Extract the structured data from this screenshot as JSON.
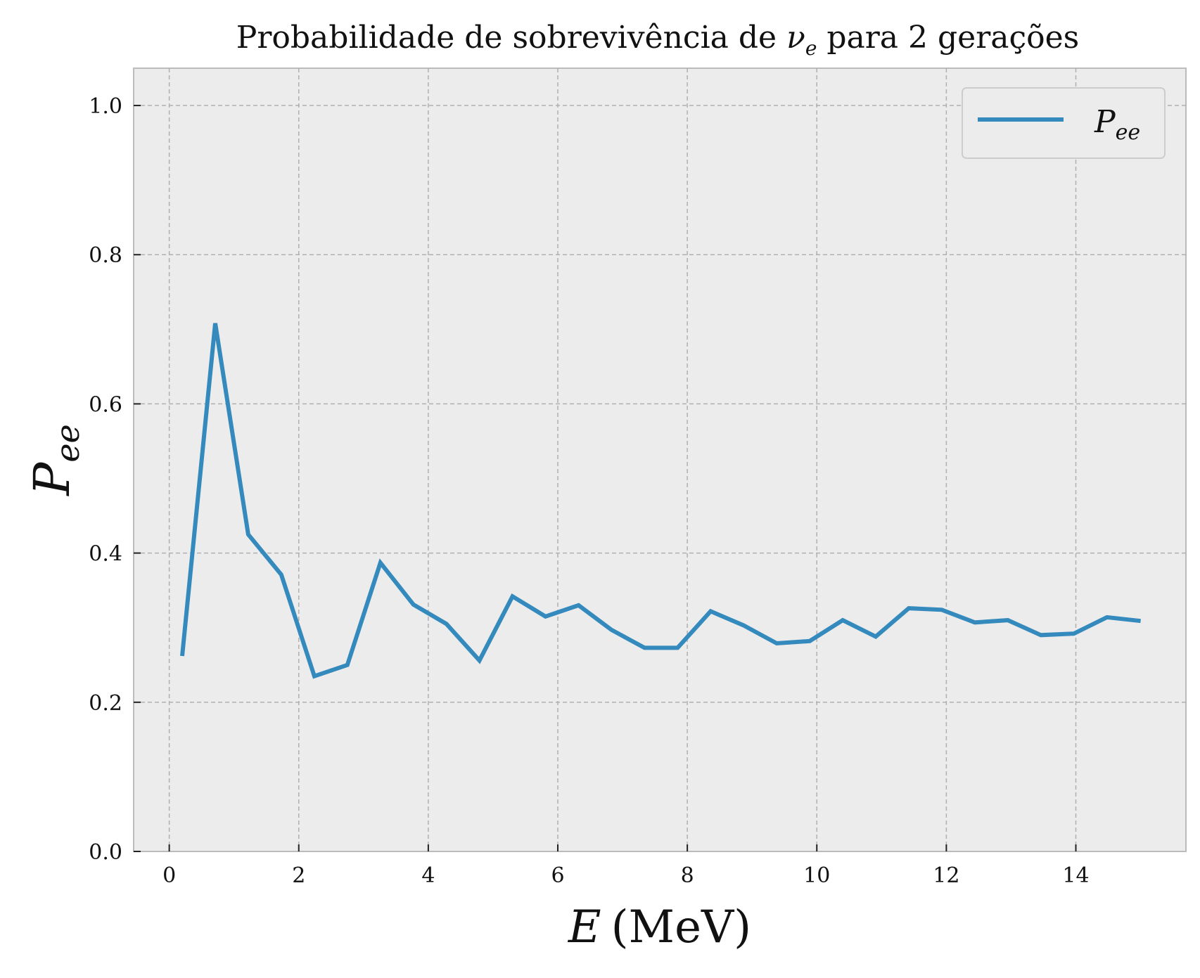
{
  "chart_data": {
    "type": "line",
    "title": {
      "prefix": "Probabilidade de sobrevivência de ",
      "symbol": "ν",
      "symbol_subscript": "e",
      "suffix": " para 2 gerações"
    },
    "xlabel": {
      "symbol": "E",
      "unit": "(MeV)"
    },
    "ylabel": {
      "symbol": "P",
      "subscript": "ee"
    },
    "xlim": [
      -0.55,
      15.7
    ],
    "ylim": [
      0.0,
      1.05
    ],
    "x_ticks": [
      0,
      2,
      4,
      6,
      8,
      10,
      12,
      14
    ],
    "x_tick_labels": [
      "0",
      "2",
      "4",
      "6",
      "8",
      "10",
      "12",
      "14"
    ],
    "y_ticks": [
      0.0,
      0.2,
      0.4,
      0.6,
      0.8,
      1.0
    ],
    "y_tick_labels": [
      "0.0",
      "0.2",
      "0.4",
      "0.6",
      "0.8",
      "1.0"
    ],
    "grid": true,
    "legend_position": "top-right",
    "series": [
      {
        "name": {
          "symbol": "P",
          "subscript": "ee"
        },
        "color": "#348abd",
        "x": [
          0.2,
          0.71,
          1.22,
          1.73,
          2.24,
          2.75,
          3.26,
          3.77,
          4.28,
          4.79,
          5.3,
          5.81,
          6.32,
          6.83,
          7.34,
          7.85,
          8.36,
          8.87,
          9.38,
          9.89,
          10.4,
          10.91,
          11.42,
          11.93,
          12.44,
          12.95,
          13.46,
          13.97,
          14.48,
          15.0
        ],
        "y": [
          0.262,
          0.708,
          0.425,
          0.371,
          0.235,
          0.25,
          0.387,
          0.331,
          0.305,
          0.256,
          0.342,
          0.315,
          0.33,
          0.297,
          0.273,
          0.273,
          0.322,
          0.303,
          0.279,
          0.282,
          0.31,
          0.288,
          0.326,
          0.324,
          0.307,
          0.31,
          0.29,
          0.292,
          0.314,
          0.309
        ]
      }
    ]
  },
  "colors": {
    "plot_background": "#ececec",
    "grid": "#b0b0b0",
    "spine": "#bcbcbc",
    "line": "#348abd"
  }
}
